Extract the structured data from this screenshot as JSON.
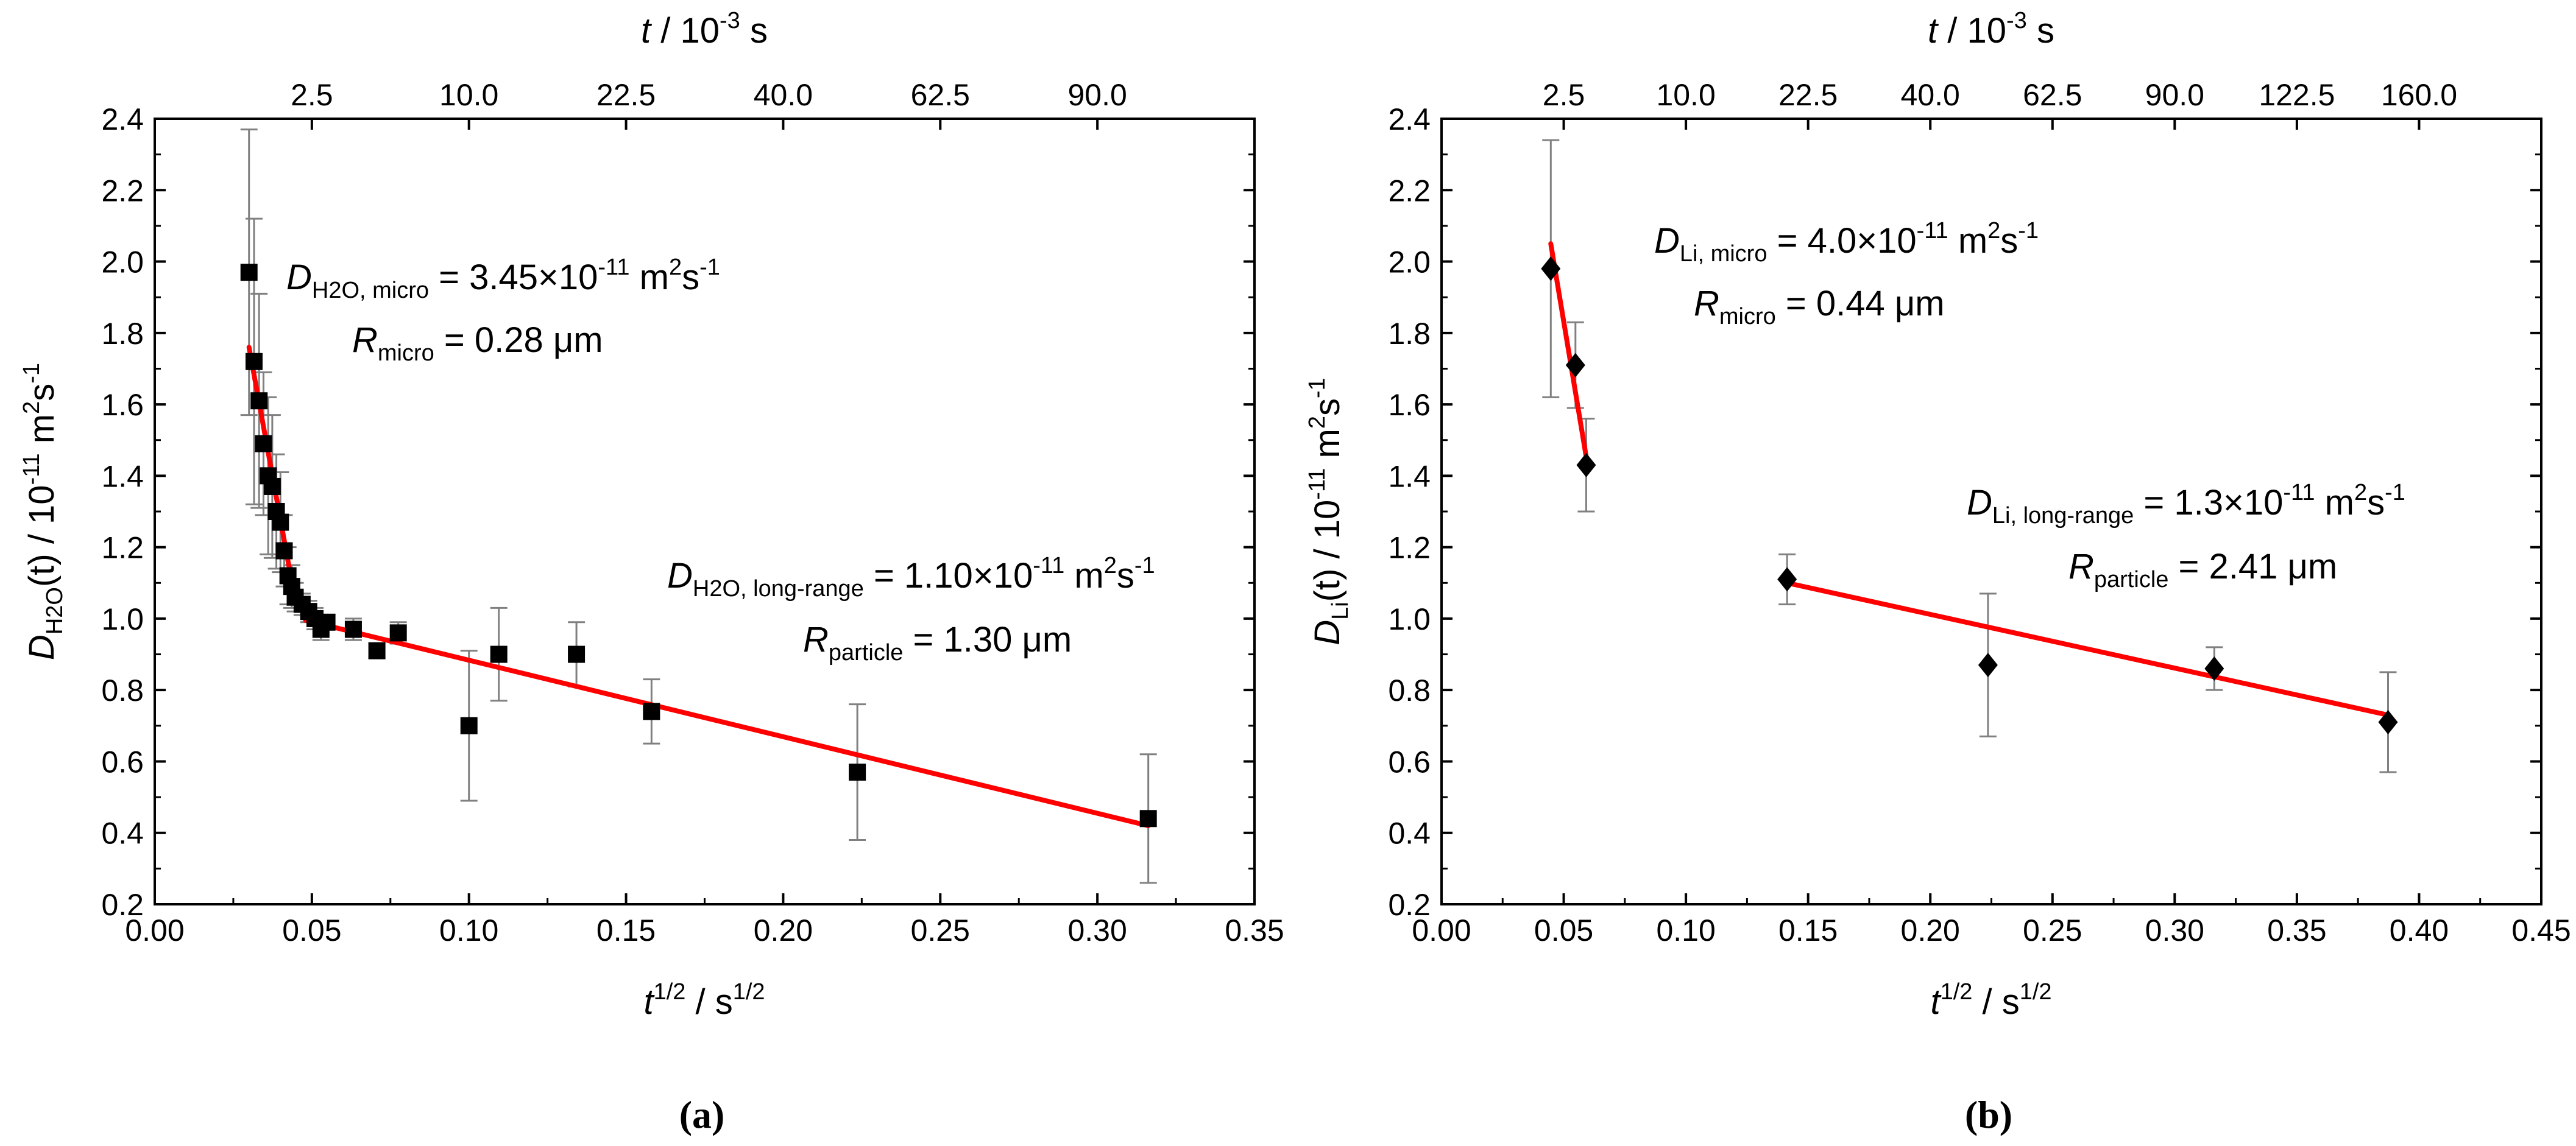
{
  "panels": [
    {
      "label": "(a)",
      "chart_data": {
        "type": "scatter",
        "title": "",
        "xlabel": {
          "main": "t",
          "sup": "1/2",
          "rest": " / s",
          "sup2": "1/2"
        },
        "ylabel": {
          "main": "D",
          "sub": "H2O",
          "rest": "(t) / 10",
          "sup": "-11",
          "rest2": " m",
          "sup2": "2",
          "rest3": "s",
          "sup3": "-1"
        },
        "toplabel": {
          "main": "t",
          "rest": " / 10",
          "sup": "-3",
          "rest2": " s"
        },
        "xlim": [
          0.0,
          0.35
        ],
        "ylim": [
          0.2,
          2.4
        ],
        "xticks": [
          0.0,
          0.05,
          0.1,
          0.15,
          0.2,
          0.25,
          0.3,
          0.35
        ],
        "xtick_labels": [
          "0.00",
          "0.05",
          "0.10",
          "0.15",
          "0.20",
          "0.25",
          "0.30",
          "0.35"
        ],
        "yticks": [
          0.2,
          0.4,
          0.6,
          0.8,
          1.0,
          1.2,
          1.4,
          1.6,
          1.8,
          2.0,
          2.2,
          2.4
        ],
        "ytick_labels": [
          "0.2",
          "0.4",
          "0.6",
          "0.8",
          "1.0",
          "1.2",
          "1.4",
          "1.6",
          "1.8",
          "2.0",
          "2.2",
          "2.4"
        ],
        "top_ticks": [
          2.5,
          10.0,
          22.5,
          40.0,
          62.5,
          90.0
        ],
        "top_tick_labels": [
          "2.5",
          "10.0",
          "22.5",
          "40.0",
          "62.5",
          "90.0"
        ],
        "marker": "square",
        "series": [
          {
            "name": "D_H2O(t)",
            "points": [
              {
                "x": 0.03,
                "y": 1.97,
                "err": 0.4
              },
              {
                "x": 0.0316,
                "y": 1.72,
                "err": 0.4
              },
              {
                "x": 0.0332,
                "y": 1.61,
                "err": 0.3
              },
              {
                "x": 0.0346,
                "y": 1.49,
                "err": 0.2
              },
              {
                "x": 0.0361,
                "y": 1.4,
                "err": 0.22
              },
              {
                "x": 0.0374,
                "y": 1.37,
                "err": 0.2
              },
              {
                "x": 0.0387,
                "y": 1.3,
                "err": 0.16
              },
              {
                "x": 0.04,
                "y": 1.27,
                "err": 0.14
              },
              {
                "x": 0.0412,
                "y": 1.19,
                "err": 0.1
              },
              {
                "x": 0.0424,
                "y": 1.12,
                "err": 0.08
              },
              {
                "x": 0.0436,
                "y": 1.09,
                "err": 0.06
              },
              {
                "x": 0.0447,
                "y": 1.06,
                "err": 0.04
              },
              {
                "x": 0.0469,
                "y": 1.04,
                "err": 0.03
              },
              {
                "x": 0.049,
                "y": 1.02,
                "err": 0.03
              },
              {
                "x": 0.051,
                "y": 1.0,
                "err": 0.03
              },
              {
                "x": 0.0529,
                "y": 0.97,
                "err": 0.03
              },
              {
                "x": 0.0548,
                "y": 0.99,
                "err": 0.02
              },
              {
                "x": 0.0632,
                "y": 0.97,
                "err": 0.03
              },
              {
                "x": 0.0707,
                "y": 0.91,
                "err": 0.02
              },
              {
                "x": 0.0775,
                "y": 0.96,
                "err": 0.03
              },
              {
                "x": 0.1,
                "y": 0.7,
                "err": 0.21
              },
              {
                "x": 0.1095,
                "y": 0.9,
                "err": 0.13
              },
              {
                "x": 0.1342,
                "y": 0.9,
                "err": 0.09
              },
              {
                "x": 0.1581,
                "y": 0.74,
                "err": 0.09
              },
              {
                "x": 0.2236,
                "y": 0.57,
                "err": 0.19
              },
              {
                "x": 0.3162,
                "y": 0.44,
                "err": 0.18
              }
            ]
          }
        ],
        "fits": [
          {
            "name": "micro",
            "x": [
              0.03,
              0.0445
            ],
            "y": [
              1.76,
              1.06
            ],
            "color": "#ff0000"
          },
          {
            "name": "long-range",
            "x": [
              0.048,
              0.3162
            ],
            "y": [
              0.995,
              0.42
            ],
            "color": "#ff0000"
          }
        ],
        "annotations": [
          {
            "id": "micro",
            "D_main": "D",
            "D_sub": "H2O, micro",
            "D_value": " = 3.45×10",
            "D_exp": "-11",
            "D_unit": " m",
            "D_unit_sup": "2",
            "D_unit2": "s",
            "D_unit_sup2": "-1",
            "R_main": "R",
            "R_sub": "micro",
            "R_value": " = 0.28 μm"
          },
          {
            "id": "long",
            "D_main": "D",
            "D_sub": "H2O, long-range",
            "D_value": " = 1.10×10",
            "D_exp": "-11",
            "D_unit": " m",
            "D_unit_sup": "2",
            "D_unit2": "s",
            "D_unit_sup2": "-1",
            "R_main": "R",
            "R_sub": "particle",
            "R_value": " = 1.30 μm"
          }
        ]
      }
    },
    {
      "label": "(b)",
      "chart_data": {
        "type": "scatter",
        "title": "",
        "xlabel": {
          "main": "t",
          "sup": "1/2",
          "rest": " / s",
          "sup2": "1/2"
        },
        "ylabel": {
          "main": "D",
          "sub": "Li",
          "rest": "(t) / 10",
          "sup": "-11",
          "rest2": " m",
          "sup2": "2",
          "rest3": "s",
          "sup3": "-1"
        },
        "toplabel": {
          "main": "t",
          "rest": " / 10",
          "sup": "-3",
          "rest2": " s"
        },
        "xlim": [
          0.0,
          0.45
        ],
        "ylim": [
          0.2,
          2.4
        ],
        "xticks": [
          0.0,
          0.05,
          0.1,
          0.15,
          0.2,
          0.25,
          0.3,
          0.35,
          0.4,
          0.45
        ],
        "xtick_labels": [
          "0.00",
          "0.05",
          "0.10",
          "0.15",
          "0.20",
          "0.25",
          "0.30",
          "0.35",
          "0.40",
          "0.45"
        ],
        "yticks": [
          0.2,
          0.4,
          0.6,
          0.8,
          1.0,
          1.2,
          1.4,
          1.6,
          1.8,
          2.0,
          2.2,
          2.4
        ],
        "ytick_labels": [
          "0.2",
          "0.4",
          "0.6",
          "0.8",
          "1.0",
          "1.2",
          "1.4",
          "1.6",
          "1.8",
          "2.0",
          "2.2",
          "2.4"
        ],
        "top_ticks": [
          2.5,
          10.0,
          22.5,
          40.0,
          62.5,
          90.0,
          122.5,
          160.0
        ],
        "top_tick_labels": [
          "2.5",
          "10.0",
          "22.5",
          "40.0",
          "62.5",
          "90.0",
          "122.5",
          "160.0"
        ],
        "marker": "diamond",
        "series": [
          {
            "name": "D_Li(t)",
            "points": [
              {
                "x": 0.0447,
                "y": 1.98,
                "err": 0.36
              },
              {
                "x": 0.0548,
                "y": 1.71,
                "err": 0.12
              },
              {
                "x": 0.0592,
                "y": 1.43,
                "err": 0.13
              },
              {
                "x": 0.1414,
                "y": 1.11,
                "err": 0.07
              },
              {
                "x": 0.2236,
                "y": 0.87,
                "err": 0.2
              },
              {
                "x": 0.3162,
                "y": 0.86,
                "err": 0.06
              },
              {
                "x": 0.3873,
                "y": 0.71,
                "err": 0.14
              }
            ]
          }
        ],
        "fits": [
          {
            "name": "micro",
            "x": [
              0.0447,
              0.06
            ],
            "y": [
              2.05,
              1.42
            ],
            "color": "#ff0000"
          },
          {
            "name": "long-range",
            "x": [
              0.1414,
              0.3873
            ],
            "y": [
              1.1,
              0.73
            ],
            "color": "#ff0000"
          }
        ],
        "annotations": [
          {
            "id": "micro",
            "D_main": "D",
            "D_sub": "Li, micro",
            "D_value": " = 4.0×10",
            "D_exp": "-11",
            "D_unit": " m",
            "D_unit_sup": "2",
            "D_unit2": "s",
            "D_unit_sup2": "-1",
            "R_main": "R",
            "R_sub": "micro",
            "R_value": " = 0.44 μm"
          },
          {
            "id": "long",
            "D_main": "D",
            "D_sub": "Li, long-range",
            "D_value": " = 1.3×10",
            "D_exp": "-11",
            "D_unit": " m",
            "D_unit_sup": "2",
            "D_unit2": "s",
            "D_unit_sup2": "-1",
            "R_main": "R",
            "R_sub": "particle",
            "R_value": " = 2.41 μm"
          }
        ]
      }
    }
  ],
  "colors": {
    "fit": "#ff0000",
    "marker": "#000000",
    "errorbar": "#808080",
    "axis": "#000000"
  }
}
